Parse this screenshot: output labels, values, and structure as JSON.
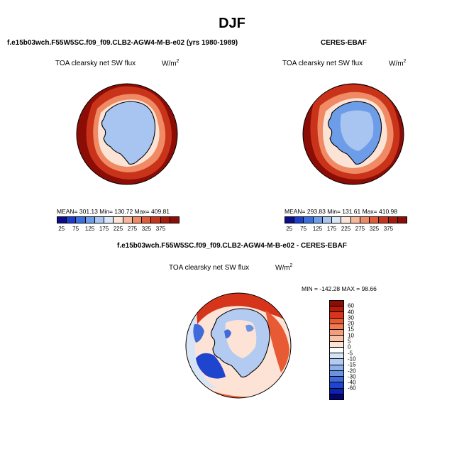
{
  "figure_title": "DJF",
  "panels": {
    "model": {
      "title": "f.e15b03wch.F55W5SC.f09_f09.CLB2-AGW4-M-B-e02 (yrs 1980-1989)",
      "variable": "TOA clearsky net SW flux",
      "units_base": "W/m",
      "units_exp": "2",
      "stats": "MEAN= 301.13  Min= 130.72  Max= 409.81"
    },
    "obs": {
      "title": "CERES-EBAF",
      "variable": "TOA clearsky net SW flux",
      "units_base": "W/m",
      "units_exp": "2",
      "stats": "MEAN= 293.83  Min= 131.61  Max= 410.98"
    },
    "diff": {
      "title": "f.e15b03wch.F55W5SC.f09_f09.CLB2-AGW4-M-B-e02 - CERES-EBAF",
      "variable": "TOA clearsky net SW flux",
      "units_base": "W/m",
      "units_exp": "2",
      "stats": "MIN = -142.28  MAX =  98.66"
    }
  },
  "abs_colorbar": {
    "labels": [
      "25",
      "75",
      "125",
      "175",
      "225",
      "275",
      "325",
      "375"
    ],
    "colors": [
      "#0b0b8c",
      "#1a3ccf",
      "#3a6fe0",
      "#6d9de8",
      "#a8c4f0",
      "#d9e6f7",
      "#fbe3d5",
      "#f7b79a",
      "#f08a64",
      "#e35b35",
      "#c9331a",
      "#a8180b",
      "#8c0d05"
    ]
  },
  "diff_colorbar": {
    "labels": [
      "60",
      "40",
      "30",
      "20",
      "15",
      "10",
      "5",
      "0",
      "-5",
      "-10",
      "-15",
      "-20",
      "-30",
      "-40",
      "-60"
    ],
    "colors": [
      "#8c0d05",
      "#b51a0b",
      "#d6351c",
      "#e85a33",
      "#f07a52",
      "#f59d7a",
      "#f9c2a7",
      "#fde3d5",
      "#ffffff",
      "#d6e4f7",
      "#b3cbf0",
      "#8eb0ea",
      "#6a92e3",
      "#3f6ad9",
      "#1f45cf",
      "#0d22b0",
      "#04046e"
    ]
  }
}
